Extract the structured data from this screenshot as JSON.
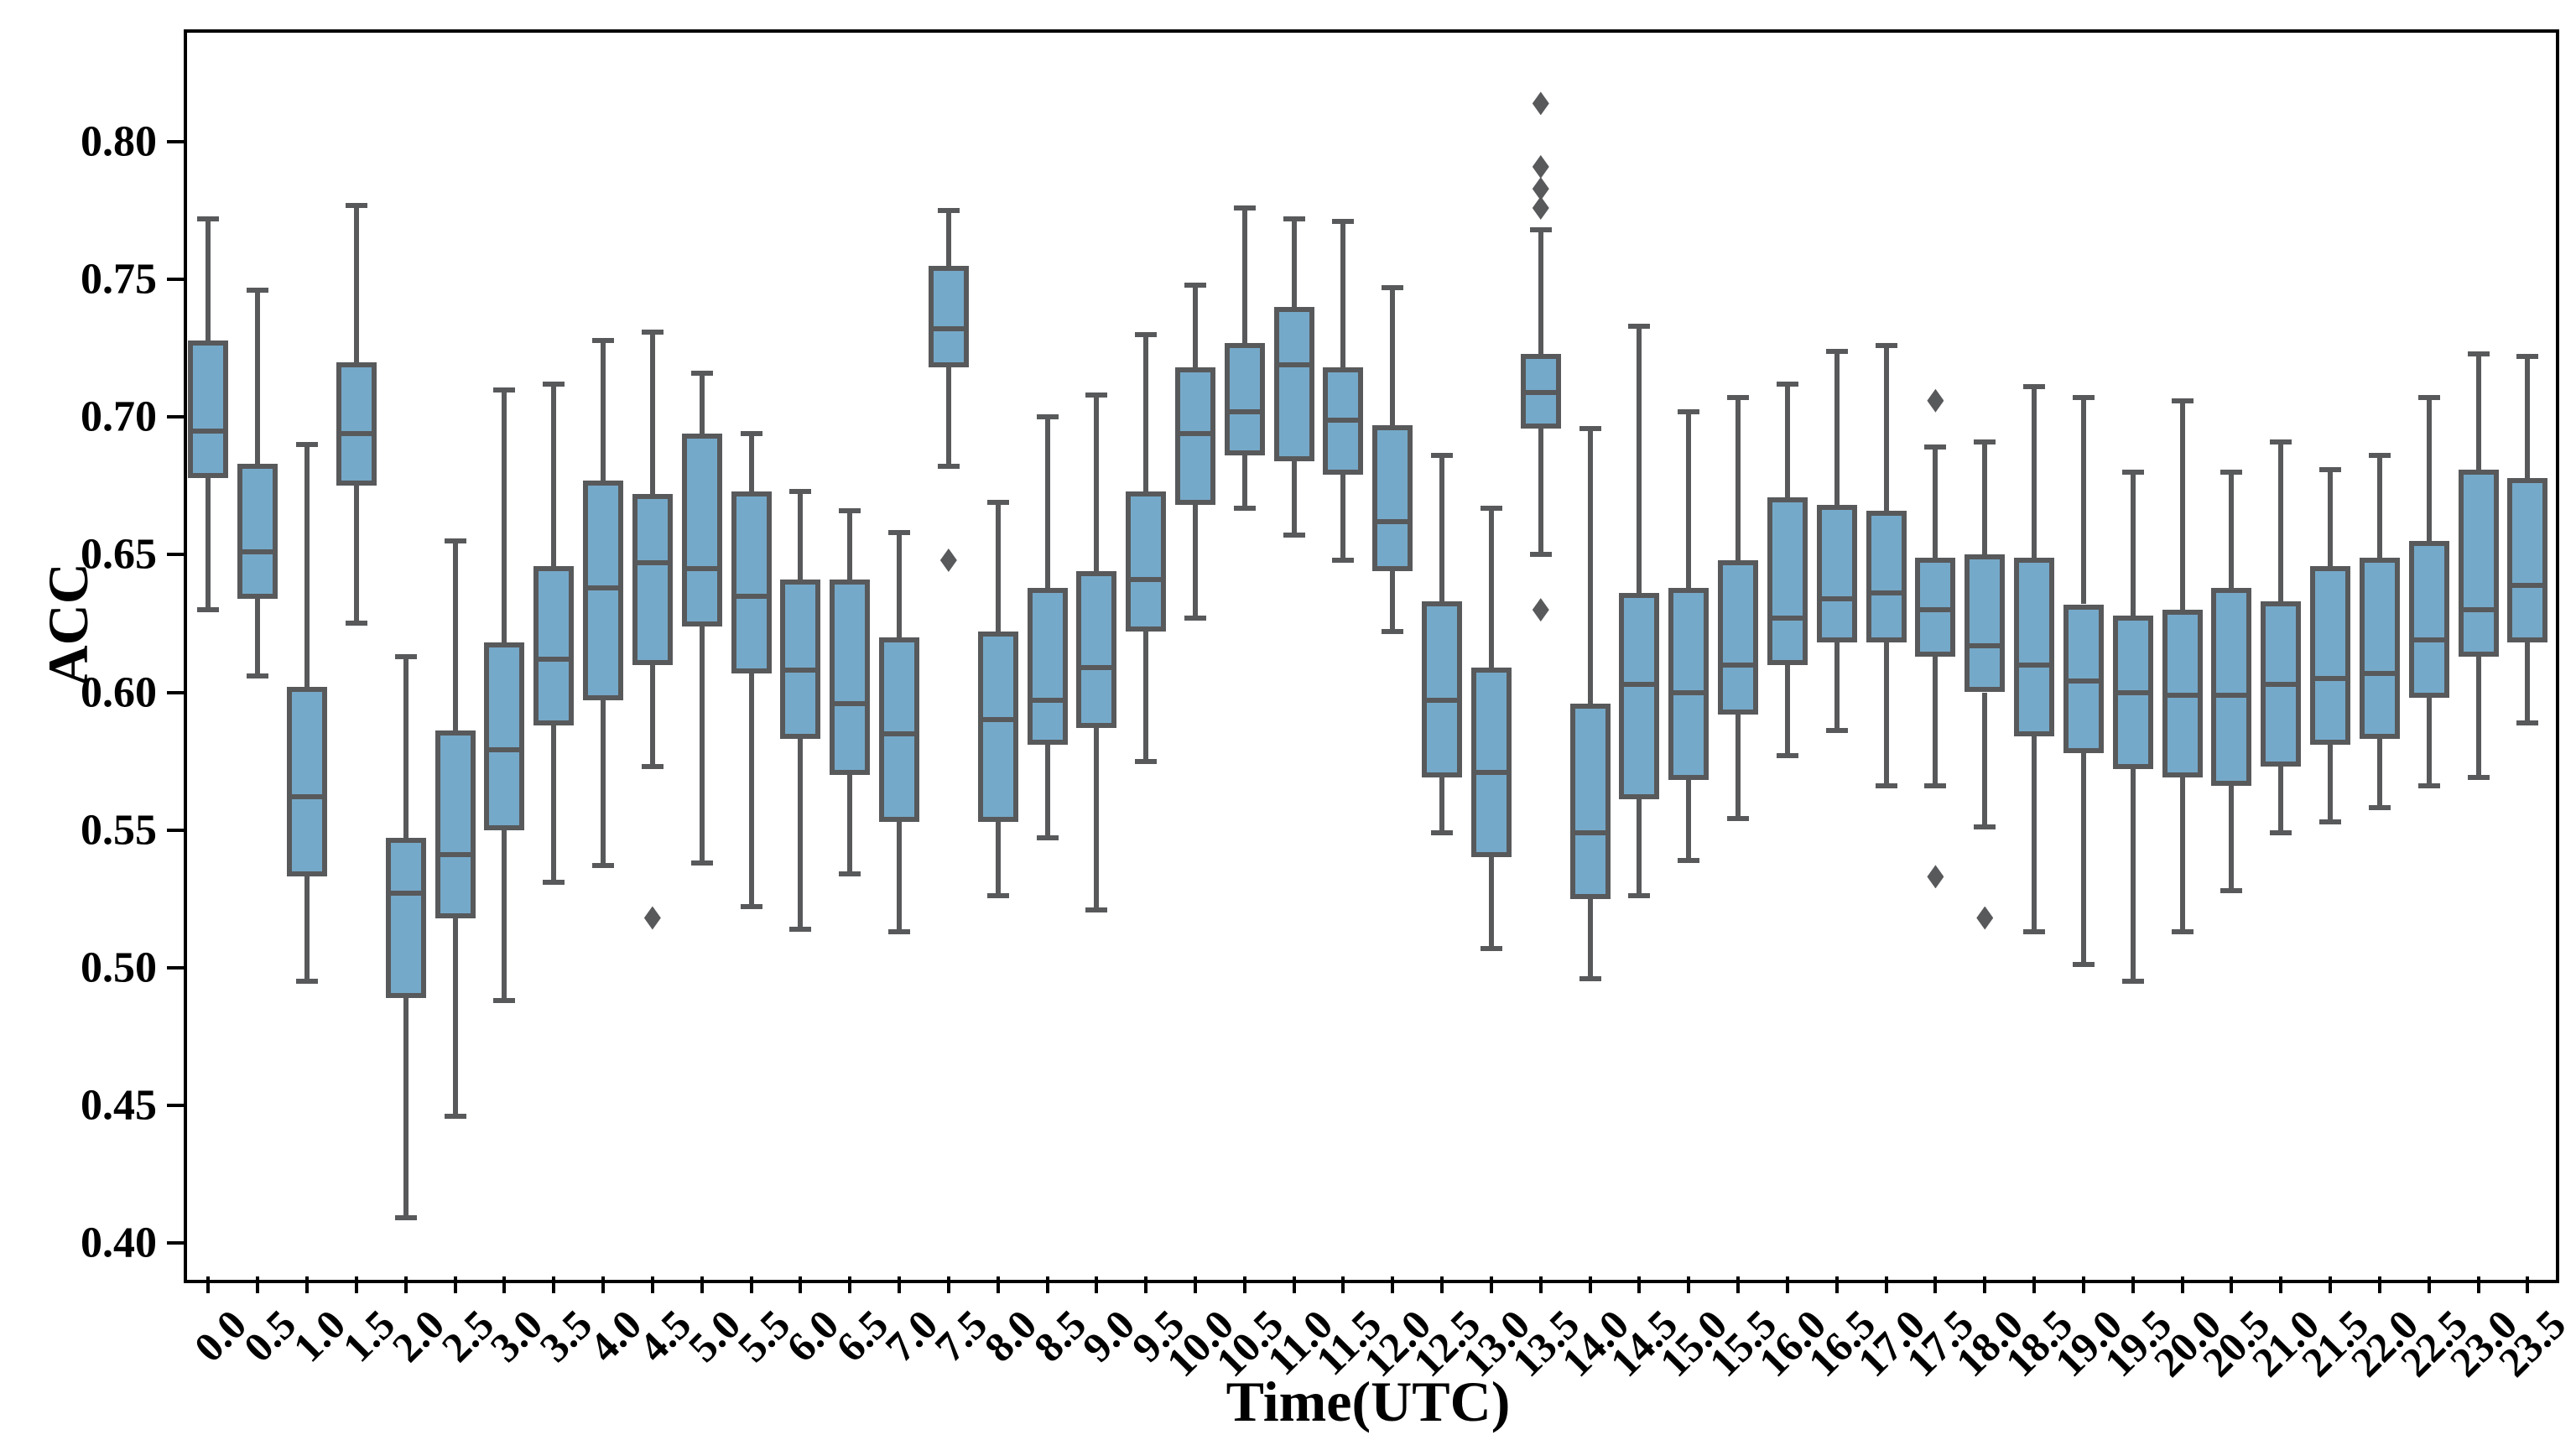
{
  "figure": {
    "xlabel": "Time(UTC)",
    "ylabel": "ACC"
  },
  "colors": {
    "box_fill": "#75a9c9",
    "box_edge": "#58595b",
    "whisker": "#58595b",
    "outlier": "#58595b",
    "spine": "#000000"
  },
  "chart_data": {
    "type": "box",
    "title": "",
    "xlabel": "Time(UTC)",
    "ylabel": "ACC",
    "legend": "none",
    "grid": false,
    "ylim": [
      0.388,
      0.841
    ],
    "y_ticks": [
      0.4,
      0.45,
      0.5,
      0.55,
      0.6,
      0.65,
      0.7,
      0.75,
      0.8
    ],
    "y_tick_labels": [
      "0.40",
      "0.45",
      "0.50",
      "0.55",
      "0.60",
      "0.65",
      "0.70",
      "0.75",
      "0.80"
    ],
    "categories": [
      "0.0",
      "0.5",
      "1.0",
      "1.5",
      "2.0",
      "2.5",
      "3.0",
      "3.5",
      "4.0",
      "4.5",
      "5.0",
      "5.5",
      "6.0",
      "6.5",
      "7.0",
      "7.5",
      "8.0",
      "8.5",
      "9.0",
      "9.5",
      "10.0",
      "10.5",
      "11.0",
      "11.5",
      "12.0",
      "12.5",
      "13.0",
      "13.5",
      "14.0",
      "14.5",
      "15.0",
      "15.5",
      "16.0",
      "16.5",
      "17.0",
      "17.5",
      "18.0",
      "18.5",
      "19.0",
      "19.5",
      "20.0",
      "20.5",
      "21.0",
      "21.5",
      "22.0",
      "22.5",
      "23.0",
      "23.5"
    ],
    "boxes": [
      {
        "whislo": 0.63,
        "q1": 0.678,
        "med": 0.695,
        "q3": 0.728,
        "whishi": 0.772,
        "outliers": []
      },
      {
        "whislo": 0.606,
        "q1": 0.634,
        "med": 0.651,
        "q3": 0.683,
        "whishi": 0.746,
        "outliers": []
      },
      {
        "whislo": 0.495,
        "q1": 0.533,
        "med": 0.562,
        "q3": 0.602,
        "whishi": 0.69,
        "outliers": []
      },
      {
        "whislo": 0.625,
        "q1": 0.675,
        "med": 0.694,
        "q3": 0.72,
        "whishi": 0.777,
        "outliers": []
      },
      {
        "whislo": 0.409,
        "q1": 0.489,
        "med": 0.527,
        "q3": 0.547,
        "whishi": 0.613,
        "outliers": []
      },
      {
        "whislo": 0.446,
        "q1": 0.518,
        "med": 0.541,
        "q3": 0.586,
        "whishi": 0.655,
        "outliers": []
      },
      {
        "whislo": 0.488,
        "q1": 0.55,
        "med": 0.579,
        "q3": 0.618,
        "whishi": 0.71,
        "outliers": []
      },
      {
        "whislo": 0.531,
        "q1": 0.588,
        "med": 0.612,
        "q3": 0.646,
        "whishi": 0.712,
        "outliers": []
      },
      {
        "whislo": 0.537,
        "q1": 0.597,
        "med": 0.638,
        "q3": 0.677,
        "whishi": 0.728,
        "outliers": []
      },
      {
        "whislo": 0.573,
        "q1": 0.61,
        "med": 0.647,
        "q3": 0.672,
        "whishi": 0.731,
        "outliers": [
          0.518
        ]
      },
      {
        "whislo": 0.538,
        "q1": 0.624,
        "med": 0.645,
        "q3": 0.694,
        "whishi": 0.716,
        "outliers": []
      },
      {
        "whislo": 0.522,
        "q1": 0.607,
        "med": 0.635,
        "q3": 0.673,
        "whishi": 0.694,
        "outliers": []
      },
      {
        "whislo": 0.514,
        "q1": 0.583,
        "med": 0.608,
        "q3": 0.641,
        "whishi": 0.673,
        "outliers": []
      },
      {
        "whislo": 0.534,
        "q1": 0.57,
        "med": 0.596,
        "q3": 0.641,
        "whishi": 0.666,
        "outliers": []
      },
      {
        "whislo": 0.513,
        "q1": 0.553,
        "med": 0.585,
        "q3": 0.62,
        "whishi": 0.658,
        "outliers": []
      },
      {
        "whislo": 0.682,
        "q1": 0.718,
        "med": 0.732,
        "q3": 0.755,
        "whishi": 0.775,
        "outliers": [
          0.648
        ]
      },
      {
        "whislo": 0.526,
        "q1": 0.553,
        "med": 0.59,
        "q3": 0.622,
        "whishi": 0.669,
        "outliers": []
      },
      {
        "whislo": 0.547,
        "q1": 0.581,
        "med": 0.597,
        "q3": 0.638,
        "whishi": 0.7,
        "outliers": []
      },
      {
        "whislo": 0.521,
        "q1": 0.587,
        "med": 0.609,
        "q3": 0.644,
        "whishi": 0.708,
        "outliers": []
      },
      {
        "whislo": 0.575,
        "q1": 0.622,
        "med": 0.641,
        "q3": 0.673,
        "whishi": 0.73,
        "outliers": []
      },
      {
        "whislo": 0.627,
        "q1": 0.668,
        "med": 0.694,
        "q3": 0.718,
        "whishi": 0.748,
        "outliers": []
      },
      {
        "whislo": 0.667,
        "q1": 0.686,
        "med": 0.702,
        "q3": 0.727,
        "whishi": 0.776,
        "outliers": []
      },
      {
        "whislo": 0.657,
        "q1": 0.684,
        "med": 0.719,
        "q3": 0.74,
        "whishi": 0.772,
        "outliers": []
      },
      {
        "whislo": 0.648,
        "q1": 0.679,
        "med": 0.699,
        "q3": 0.718,
        "whishi": 0.771,
        "outliers": []
      },
      {
        "whislo": 0.622,
        "q1": 0.644,
        "med": 0.662,
        "q3": 0.697,
        "whishi": 0.747,
        "outliers": []
      },
      {
        "whislo": 0.549,
        "q1": 0.569,
        "med": 0.597,
        "q3": 0.633,
        "whishi": 0.686,
        "outliers": []
      },
      {
        "whislo": 0.507,
        "q1": 0.54,
        "med": 0.571,
        "q3": 0.609,
        "whishi": 0.667,
        "outliers": []
      },
      {
        "whislo": 0.65,
        "q1": 0.696,
        "med": 0.709,
        "q3": 0.723,
        "whishi": 0.768,
        "outliers": [
          0.814,
          0.791,
          0.783,
          0.776,
          0.63
        ]
      },
      {
        "whislo": 0.496,
        "q1": 0.525,
        "med": 0.549,
        "q3": 0.596,
        "whishi": 0.696,
        "outliers": []
      },
      {
        "whislo": 0.526,
        "q1": 0.561,
        "med": 0.603,
        "q3": 0.636,
        "whishi": 0.733,
        "outliers": []
      },
      {
        "whislo": 0.539,
        "q1": 0.568,
        "med": 0.6,
        "q3": 0.638,
        "whishi": 0.702,
        "outliers": []
      },
      {
        "whislo": 0.554,
        "q1": 0.592,
        "med": 0.61,
        "q3": 0.648,
        "whishi": 0.707,
        "outliers": []
      },
      {
        "whislo": 0.577,
        "q1": 0.61,
        "med": 0.627,
        "q3": 0.671,
        "whishi": 0.712,
        "outliers": []
      },
      {
        "whislo": 0.586,
        "q1": 0.618,
        "med": 0.634,
        "q3": 0.668,
        "whishi": 0.724,
        "outliers": []
      },
      {
        "whislo": 0.566,
        "q1": 0.618,
        "med": 0.636,
        "q3": 0.666,
        "whishi": 0.726,
        "outliers": []
      },
      {
        "whislo": 0.566,
        "q1": 0.613,
        "med": 0.63,
        "q3": 0.649,
        "whishi": 0.689,
        "outliers": [
          0.706,
          0.533
        ]
      },
      {
        "whislo": 0.551,
        "q1": 0.6,
        "med": 0.617,
        "q3": 0.65,
        "whishi": 0.691,
        "outliers": [
          0.518
        ]
      },
      {
        "whislo": 0.513,
        "q1": 0.584,
        "med": 0.61,
        "q3": 0.649,
        "whishi": 0.711,
        "outliers": []
      },
      {
        "whislo": 0.501,
        "q1": 0.578,
        "med": 0.604,
        "q3": 0.632,
        "whishi": 0.707,
        "outliers": []
      },
      {
        "whislo": 0.495,
        "q1": 0.572,
        "med": 0.6,
        "q3": 0.628,
        "whishi": 0.68,
        "outliers": []
      },
      {
        "whislo": 0.513,
        "q1": 0.569,
        "med": 0.599,
        "q3": 0.63,
        "whishi": 0.706,
        "outliers": []
      },
      {
        "whislo": 0.528,
        "q1": 0.566,
        "med": 0.599,
        "q3": 0.638,
        "whishi": 0.68,
        "outliers": []
      },
      {
        "whislo": 0.549,
        "q1": 0.573,
        "med": 0.603,
        "q3": 0.633,
        "whishi": 0.691,
        "outliers": []
      },
      {
        "whislo": 0.553,
        "q1": 0.581,
        "med": 0.605,
        "q3": 0.646,
        "whishi": 0.681,
        "outliers": []
      },
      {
        "whislo": 0.558,
        "q1": 0.583,
        "med": 0.607,
        "q3": 0.649,
        "whishi": 0.686,
        "outliers": []
      },
      {
        "whislo": 0.566,
        "q1": 0.598,
        "med": 0.619,
        "q3": 0.655,
        "whishi": 0.707,
        "outliers": []
      },
      {
        "whislo": 0.569,
        "q1": 0.613,
        "med": 0.63,
        "q3": 0.681,
        "whishi": 0.723,
        "outliers": []
      },
      {
        "whislo": 0.589,
        "q1": 0.618,
        "med": 0.639,
        "q3": 0.678,
        "whishi": 0.722,
        "outliers": []
      }
    ]
  }
}
